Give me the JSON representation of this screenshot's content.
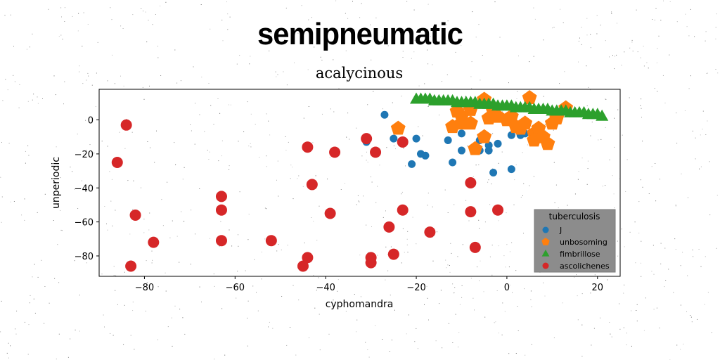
{
  "page": {
    "title": "semipneumatic"
  },
  "chart_data": {
    "type": "scatter",
    "title": "acalycinous",
    "xlabel": "cyphomandra",
    "ylabel": "unperiodic",
    "xlim": [
      -90,
      25
    ],
    "ylim": [
      -92,
      18
    ],
    "xticks": [
      -80,
      -60,
      -40,
      -20,
      0,
      20
    ],
    "yticks": [
      -80,
      -60,
      -40,
      -20,
      0
    ],
    "grid": false,
    "legend": {
      "title": "tuberculosis",
      "position": "lower-right"
    },
    "series": [
      {
        "name": "J",
        "color": "#1f77b4",
        "marker": "circle",
        "points": [
          [
            -27,
            3
          ],
          [
            -25,
            -11
          ],
          [
            -20,
            -11
          ],
          [
            -19,
            -20
          ],
          [
            -18,
            -21
          ],
          [
            -21,
            -26
          ],
          [
            -13,
            -12
          ],
          [
            -10,
            -8
          ],
          [
            -10,
            -18
          ],
          [
            -12,
            -25
          ],
          [
            -6,
            -12
          ],
          [
            -6,
            -18
          ],
          [
            -4,
            -15
          ],
          [
            -4,
            -18
          ],
          [
            -2,
            -14
          ],
          [
            -3,
            -31
          ],
          [
            1,
            -29
          ],
          [
            1,
            -9
          ],
          [
            3,
            -9
          ],
          [
            4,
            -8
          ],
          [
            -31,
            -13
          ]
        ]
      },
      {
        "name": "unbosoming",
        "color": "#ff7f0e",
        "marker": "pentagon",
        "points": [
          [
            -24,
            -5
          ],
          [
            -5,
            12
          ],
          [
            5,
            13
          ],
          [
            13,
            7
          ],
          [
            -11,
            5
          ],
          [
            -10,
            2
          ],
          [
            -8,
            6
          ],
          [
            -12,
            -4
          ],
          [
            -10,
            -2
          ],
          [
            -7,
            -17
          ],
          [
            -5,
            -10
          ],
          [
            -4,
            1
          ],
          [
            -3,
            5
          ],
          [
            -2,
            2
          ],
          [
            0,
            0
          ],
          [
            1,
            2
          ],
          [
            2,
            -4
          ],
          [
            3,
            -5
          ],
          [
            4,
            -2
          ],
          [
            6,
            -8
          ],
          [
            7,
            -5
          ],
          [
            6,
            -12
          ],
          [
            8,
            -10
          ],
          [
            9,
            -14
          ],
          [
            10,
            -2
          ],
          [
            11,
            1
          ],
          [
            -8,
            -2
          ]
        ]
      },
      {
        "name": "fimbrillose",
        "color": "#2ca02c",
        "marker": "triangle",
        "points": [
          [
            -20,
            12
          ],
          [
            -19,
            12
          ],
          [
            -18,
            12
          ],
          [
            -17,
            12
          ],
          [
            -16,
            11
          ],
          [
            -15,
            11
          ],
          [
            -14,
            11
          ],
          [
            -13,
            11
          ],
          [
            -12,
            11
          ],
          [
            -11,
            10
          ],
          [
            -10,
            10
          ],
          [
            -9,
            10
          ],
          [
            -8,
            10
          ],
          [
            -7,
            10
          ],
          [
            -6,
            9
          ],
          [
            -5,
            9
          ],
          [
            -4,
            9
          ],
          [
            -3,
            9
          ],
          [
            -2,
            8
          ],
          [
            -1,
            8
          ],
          [
            0,
            8
          ],
          [
            1,
            8
          ],
          [
            2,
            7
          ],
          [
            3,
            7
          ],
          [
            4,
            7
          ],
          [
            5,
            7
          ],
          [
            6,
            6
          ],
          [
            7,
            6
          ],
          [
            8,
            6
          ],
          [
            9,
            6
          ],
          [
            10,
            5
          ],
          [
            11,
            5
          ],
          [
            12,
            5
          ],
          [
            13,
            5
          ],
          [
            14,
            4
          ],
          [
            15,
            4
          ],
          [
            16,
            4
          ],
          [
            17,
            4
          ],
          [
            18,
            3
          ],
          [
            19,
            3
          ],
          [
            20,
            3
          ],
          [
            21,
            2
          ]
        ]
      },
      {
        "name": "ascolichenes",
        "color": "#d62728",
        "marker": "circle",
        "points": [
          [
            -84,
            -3
          ],
          [
            -86,
            -25
          ],
          [
            -82,
            -56
          ],
          [
            -78,
            -72
          ],
          [
            -83,
            -86
          ],
          [
            -63,
            -45
          ],
          [
            -63,
            -53
          ],
          [
            -63,
            -71
          ],
          [
            -52,
            -71
          ],
          [
            -44,
            -16
          ],
          [
            -43,
            -38
          ],
          [
            -44,
            -81
          ],
          [
            -45,
            -86
          ],
          [
            -38,
            -19
          ],
          [
            -39,
            -55
          ],
          [
            -31,
            -11
          ],
          [
            -29,
            -19
          ],
          [
            -30,
            -81
          ],
          [
            -30,
            -84
          ],
          [
            -26,
            -63
          ],
          [
            -25,
            -79
          ],
          [
            -23,
            -13
          ],
          [
            -23,
            -53
          ],
          [
            -17,
            -66
          ],
          [
            -8,
            -37
          ],
          [
            -8,
            -54
          ],
          [
            -7,
            -75
          ],
          [
            -2,
            -53
          ]
        ]
      }
    ]
  }
}
